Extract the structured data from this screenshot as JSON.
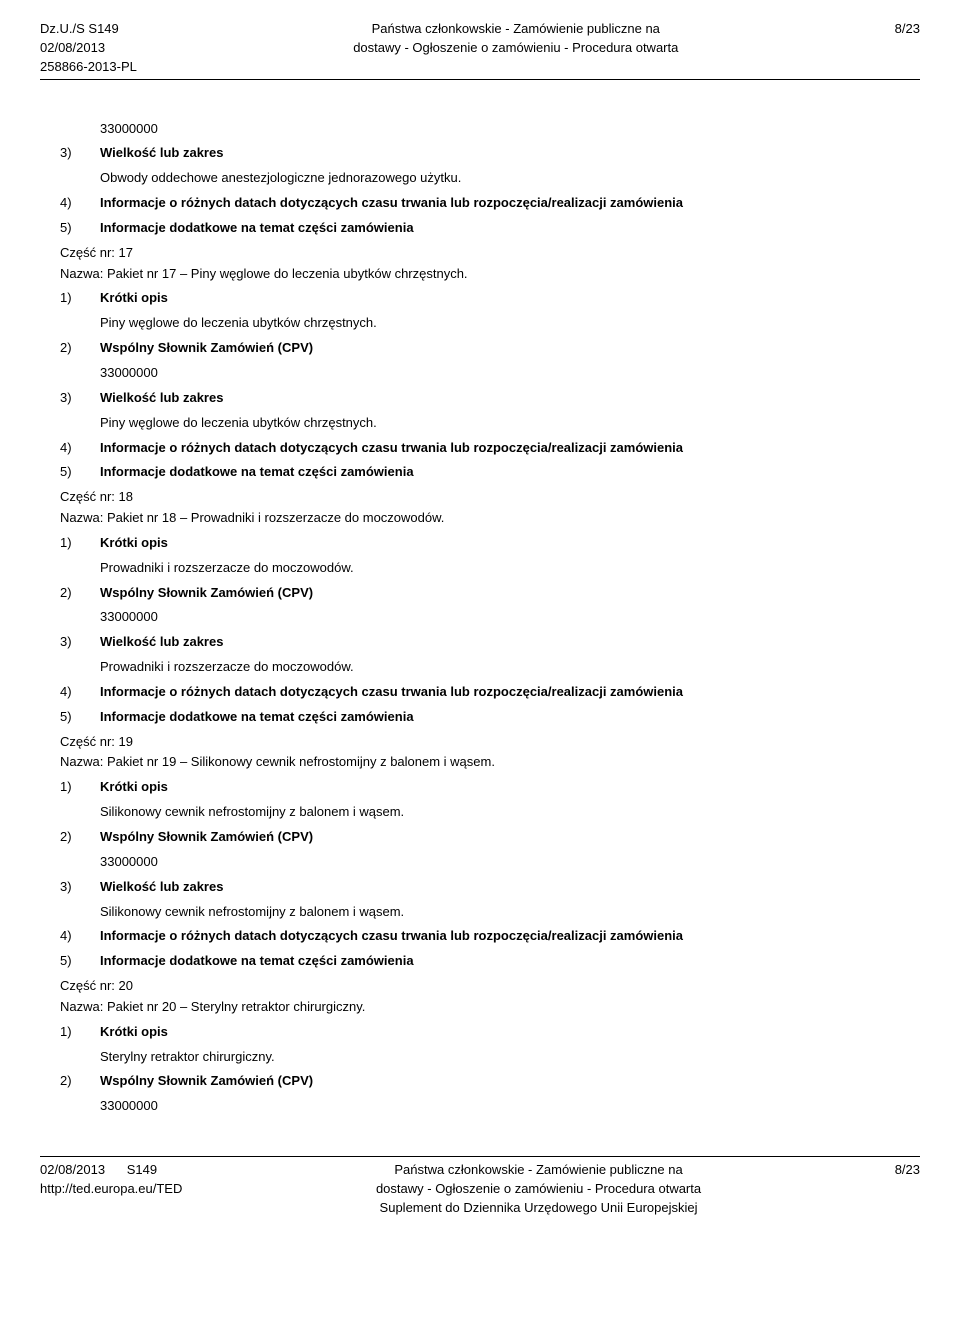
{
  "header": {
    "left_line1": "Dz.U./S S149",
    "left_line2": "02/08/2013",
    "left_line3": "258866-2013-PL",
    "center_line1": "Państwa członkowskie - Zamówienie publiczne na",
    "center_line2": "dostawy - Ogłoszenie o zamówieniu - Procedura otwarta",
    "right": "8/23"
  },
  "cpv_code": "33000000",
  "labels": {
    "n1": "1)",
    "n2": "2)",
    "n3": "3)",
    "n4": "4)",
    "n5": "5)",
    "short_desc": "Krótki opis",
    "cpv": "Wspólny Słownik Zamówień (CPV)",
    "size": "Wielkość lub zakres",
    "dates": "Informacje o różnych datach dotyczących czasu trwania lub rozpoczęcia/realizacji zamówienia",
    "extra": "Informacje dodatkowe na temat części zamówienia"
  },
  "parts": {
    "preamble_item": "Obwody oddechowe anestezjologiczne jednorazowego użytku.",
    "p17": {
      "part": "Część nr: 17",
      "title": "Nazwa: Pakiet nr 17 – Piny węglowe do leczenia ubytków chrzęstnych.",
      "desc": "Piny węglowe do leczenia ubytków chrzęstnych."
    },
    "p18": {
      "part": "Część nr: 18",
      "title": "Nazwa: Pakiet nr 18 – Prowadniki i rozszerzacze do moczowodów.",
      "desc": "Prowadniki i rozszerzacze do moczowodów."
    },
    "p19": {
      "part": "Część nr: 19",
      "title": "Nazwa: Pakiet nr 19 – Silikonowy cewnik nefrostomijny z balonem i wąsem.",
      "desc": "Silikonowy cewnik nefrostomijny z balonem i wąsem."
    },
    "p20": {
      "part": "Część nr: 20",
      "title": "Nazwa: Pakiet nr 20 – Sterylny retraktor chirurgiczny.",
      "desc": "Sterylny retraktor chirurgiczny."
    }
  },
  "footer": {
    "left_line1": "02/08/2013",
    "left_s": "S149",
    "left_line2": "http://ted.europa.eu/TED",
    "center_line1": "Państwa członkowskie - Zamówienie publiczne na",
    "center_line2": "dostawy - Ogłoszenie o zamówieniu - Procedura otwarta",
    "center_line3": "Suplement do Dziennika Urzędowego Unii Europejskiej",
    "right": "8/23"
  }
}
